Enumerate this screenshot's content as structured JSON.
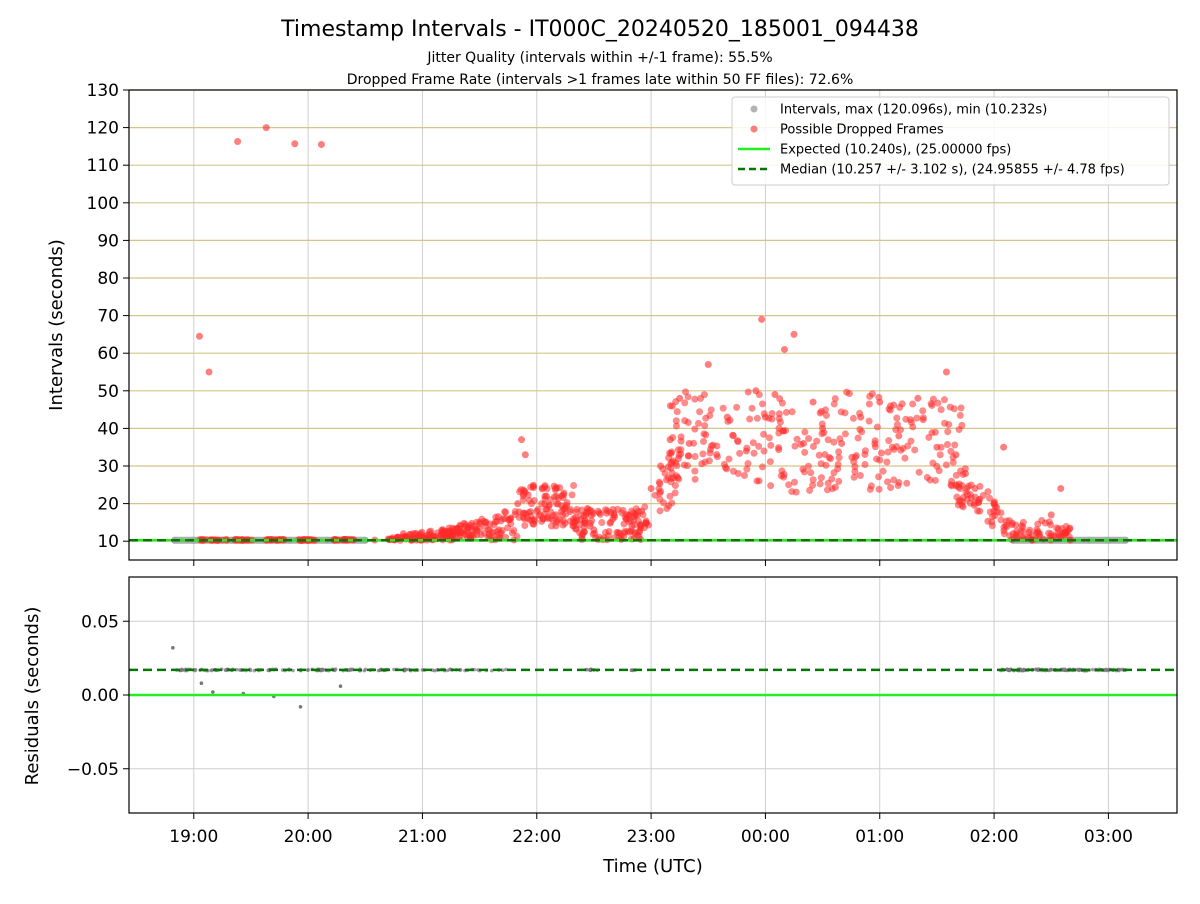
{
  "chart_data": [
    {
      "type": "scatter",
      "title": "Timestamp Intervals - IT000C_20240520_185001_094438",
      "subtitle_lines": [
        "Jitter Quality (intervals within +/-1 frame): 55.5%",
        "Dropped Frame Rate (intervals >1 frames late within 50 FF files): 72.6%"
      ],
      "xlabel": "",
      "ylabel": "Intervals (seconds)",
      "x_tick_labels": [
        "19:00",
        "20:00",
        "21:00",
        "22:00",
        "23:00",
        "00:00",
        "01:00",
        "02:00",
        "03:00"
      ],
      "y_ticks": [
        10,
        20,
        30,
        40,
        50,
        60,
        70,
        80,
        90,
        100,
        110,
        120,
        130
      ],
      "ylim": [
        5,
        130
      ],
      "xlim": [
        "18:26",
        "03:36"
      ],
      "grid": true,
      "legend_position": "top-right",
      "colors": {
        "intervals": "#a6a6a6",
        "dropped": "#ff2a2a",
        "expected": "#22ee22",
        "median": "#007700",
        "grid": "#cfcfcf",
        "hline": "#d8c48a"
      },
      "legend": [
        {
          "label": "Intervals, max (120.096s), min (10.232s)",
          "marker": "gray-dot"
        },
        {
          "label": "Possible Dropped Frames",
          "marker": "red-dot"
        },
        {
          "label": "Expected (10.240s), (25.00000 fps)",
          "marker": "green-line"
        },
        {
          "label": "Median (10.257 +/- 3.102 s), (24.95855 +/- 4.78 fps)",
          "marker": "green-dash"
        }
      ],
      "reference_lines": {
        "expected": 10.24,
        "median": 10.257
      },
      "series": [
        {
          "name": "Intervals, max (120.096s), min (10.232s)",
          "x": [
            "18:50",
            "19:00",
            "19:10",
            "19:20",
            "19:30",
            "19:40",
            "19:50",
            "20:00",
            "20:10",
            "20:20",
            "20:30",
            "02:10",
            "02:20",
            "02:30",
            "02:40",
            "02:50",
            "03:00",
            "03:09"
          ],
          "y": [
            10.25,
            10.25,
            10.25,
            10.25,
            10.25,
            10.25,
            10.25,
            10.25,
            10.25,
            10.25,
            10.25,
            10.25,
            10.25,
            10.25,
            10.25,
            10.25,
            10.25,
            10.25
          ]
        },
        {
          "name": "Possible Dropped Frames",
          "x": [
            "19:03",
            "19:08",
            "19:23",
            "19:38",
            "19:53",
            "20:07",
            "19:05",
            "19:15",
            "19:25",
            "19:45",
            "20:00",
            "20:20",
            "20:35",
            "20:50",
            "20:58",
            "21:10",
            "21:20",
            "21:30",
            "21:40",
            "21:50",
            "21:52",
            "21:54",
            "22:00",
            "22:05",
            "22:10",
            "22:15",
            "22:20",
            "22:30",
            "22:40",
            "22:50",
            "22:55",
            "23:00",
            "23:05",
            "23:10",
            "23:15",
            "23:20",
            "23:30",
            "23:40",
            "23:50",
            "23:55",
            "23:58",
            "00:00",
            "00:05",
            "00:10",
            "00:15",
            "00:20",
            "00:25",
            "00:30",
            "00:40",
            "00:50",
            "01:00",
            "01:10",
            "01:20",
            "01:30",
            "01:35",
            "01:40",
            "01:45",
            "01:50",
            "02:00",
            "02:05",
            "02:10",
            "02:15",
            "02:20",
            "02:30",
            "02:35",
            "02:37",
            "02:40"
          ],
          "y": [
            64.5,
            55,
            116.3,
            120,
            115.7,
            115.5,
            10.3,
            10.3,
            10.3,
            10.3,
            10.3,
            10.3,
            10.3,
            12,
            11,
            12,
            14,
            15,
            13,
            20,
            37,
            33,
            18,
            22,
            17,
            19,
            15,
            13,
            16,
            14,
            18,
            24,
            30,
            37,
            48,
            36,
            57,
            43,
            34,
            50,
            69,
            43,
            49,
            61,
            65,
            36,
            47,
            40,
            36,
            43,
            47,
            38,
            48,
            35,
            55,
            33,
            28,
            24,
            18,
            35,
            12,
            11,
            10.3,
            17,
            24,
            12,
            10.3
          ]
        }
      ]
    },
    {
      "type": "scatter",
      "title": "",
      "xlabel": "Time (UTC)",
      "ylabel": "Residuals (seconds)",
      "x_tick_labels": [
        "19:00",
        "20:00",
        "21:00",
        "22:00",
        "23:00",
        "00:00",
        "01:00",
        "02:00",
        "03:00"
      ],
      "y_tick_labels": [
        "−0.05",
        "0.00",
        "0.05"
      ],
      "y_ticks": [
        -0.05,
        0.0,
        0.05
      ],
      "ylim": [
        -0.08,
        0.08
      ],
      "grid": true,
      "reference_lines": {
        "expected": 0.0,
        "median": 0.017
      },
      "series": [
        {
          "x": [
            "18:49",
            "18:54",
            "19:04",
            "19:10",
            "19:26",
            "19:42",
            "19:56",
            "20:17"
          ],
          "y": [
            0.032,
            0.017,
            0.008,
            0.002,
            0.001,
            -0.001,
            -0.008,
            0.006
          ]
        },
        {
          "x": [
            "18:51",
            "19:00",
            "19:20",
            "19:40",
            "20:00",
            "20:20",
            "20:40",
            "21:00",
            "21:20",
            "21:40",
            "22:30",
            "22:50",
            "02:05",
            "02:20",
            "02:40",
            "03:00",
            "03:09"
          ],
          "y": [
            0.017,
            0.017,
            0.017,
            0.017,
            0.017,
            0.017,
            0.017,
            0.017,
            0.017,
            0.017,
            0.017,
            0.017,
            0.017,
            0.017,
            0.017,
            0.017,
            0.017
          ]
        }
      ]
    }
  ]
}
